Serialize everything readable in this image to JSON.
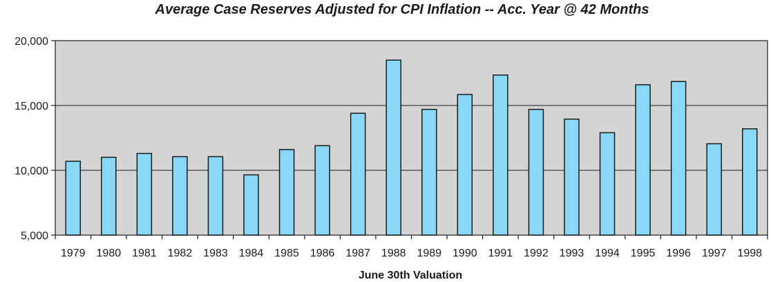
{
  "chart_data": {
    "type": "bar",
    "title": "Average Case Reserves Adjusted for CPI Inflation -- Acc. Year @ 42 Months",
    "xlabel": "June 30th Valuation",
    "ylabel": "",
    "categories": [
      "1979",
      "1980",
      "1981",
      "1982",
      "1983",
      "1984",
      "1985",
      "1986",
      "1987",
      "1988",
      "1989",
      "1990",
      "1991",
      "1992",
      "1993",
      "1994",
      "1995",
      "1996",
      "1997",
      "1998"
    ],
    "values": [
      10700,
      11000,
      11300,
      11050,
      11050,
      9650,
      11600,
      11900,
      14400,
      18500,
      14700,
      15850,
      17350,
      14700,
      13950,
      12900,
      16600,
      16850,
      12050,
      13200
    ],
    "ylim": [
      5000,
      20000
    ],
    "yticks": [
      5000,
      10000,
      15000,
      20000
    ],
    "ytick_labels": [
      "5,000",
      "10,000",
      "15,000",
      "20,000"
    ],
    "grid": true,
    "colors": {
      "bar_fill": "#8ad8f8",
      "bar_stroke": "#1a1a1a",
      "plot_bg": "#d4d4d4",
      "grid": "#1a1a1a"
    }
  }
}
